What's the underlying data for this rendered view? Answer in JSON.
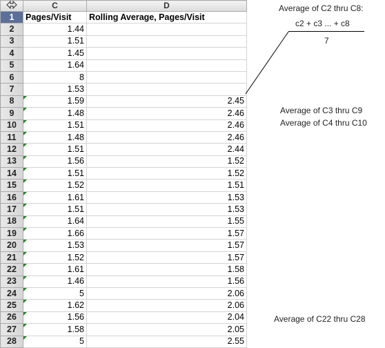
{
  "columns": {
    "c": "C",
    "d": "D"
  },
  "rows": [
    {
      "n": "1",
      "c": "Pages/Visit",
      "d": "Rolling Average, Pages/Visit"
    },
    {
      "n": "2",
      "c": "1.44",
      "d": ""
    },
    {
      "n": "3",
      "c": "1.51",
      "d": ""
    },
    {
      "n": "4",
      "c": "1.45",
      "d": ""
    },
    {
      "n": "5",
      "c": "1.64",
      "d": ""
    },
    {
      "n": "6",
      "c": "8",
      "d": ""
    },
    {
      "n": "7",
      "c": "1.53",
      "d": ""
    },
    {
      "n": "8",
      "c": "1.59",
      "d": "2.45"
    },
    {
      "n": "9",
      "c": "1.48",
      "d": "2.46"
    },
    {
      "n": "10",
      "c": "1.51",
      "d": "2.46"
    },
    {
      "n": "11",
      "c": "1.48",
      "d": "2.46"
    },
    {
      "n": "12",
      "c": "1.51",
      "d": "2.44"
    },
    {
      "n": "13",
      "c": "1.56",
      "d": "1.52"
    },
    {
      "n": "14",
      "c": "1.51",
      "d": "1.52"
    },
    {
      "n": "15",
      "c": "1.52",
      "d": "1.51"
    },
    {
      "n": "16",
      "c": "1.61",
      "d": "1.53"
    },
    {
      "n": "17",
      "c": "1.51",
      "d": "1.53"
    },
    {
      "n": "18",
      "c": "1.64",
      "d": "1.55"
    },
    {
      "n": "19",
      "c": "1.66",
      "d": "1.57"
    },
    {
      "n": "20",
      "c": "1.53",
      "d": "1.57"
    },
    {
      "n": "21",
      "c": "1.52",
      "d": "1.57"
    },
    {
      "n": "22",
      "c": "1.61",
      "d": "1.58"
    },
    {
      "n": "23",
      "c": "1.46",
      "d": "1.56"
    },
    {
      "n": "24",
      "c": "5",
      "d": "2.06"
    },
    {
      "n": "25",
      "c": "1.62",
      "d": "2.06"
    },
    {
      "n": "26",
      "c": "1.56",
      "d": "2.04"
    },
    {
      "n": "27",
      "c": "1.58",
      "d": "2.05"
    },
    {
      "n": "28",
      "c": "5",
      "d": "2.55"
    }
  ],
  "annotations": {
    "avg_c2_c8": "Average of C2 thru C8:",
    "numerator": "c2 + c3 ... + c8",
    "denominator": "7",
    "avg_c3_c9": "Average of C3 thru C9",
    "avg_c4_c10": "Average of C4 thru C10",
    "avg_c22_c28": "Average of C22 thru C28"
  },
  "colors": {
    "selected_row_header": "#5a6f9a",
    "error_flag": "#1a8a1a"
  }
}
